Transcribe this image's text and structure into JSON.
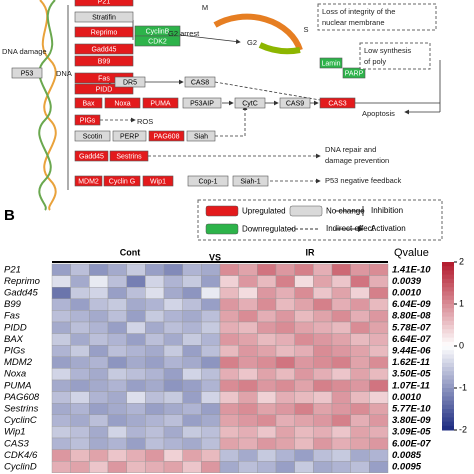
{
  "panel_a": {
    "nodes": [
      {
        "label": "P21",
        "color": "#e31a1c"
      },
      {
        "label": "Stratifin",
        "color": "#d9d9d9"
      },
      {
        "label": "Reprimo",
        "color": "#e31a1c"
      },
      {
        "label": "Gadd45",
        "color": "#e31a1c"
      },
      {
        "label": "B99",
        "color": "#e31a1c"
      },
      {
        "label": "CyclinB",
        "color": "#2db34a"
      },
      {
        "label": "CDK2",
        "color": "#2db34a"
      },
      {
        "label": "P53",
        "color": "#d9d9d9"
      },
      {
        "label": "Fas",
        "color": "#e31a1c"
      },
      {
        "label": "PIDD",
        "color": "#e31a1c"
      },
      {
        "label": "DR5",
        "color": "#d9d9d9"
      },
      {
        "label": "CAS8",
        "color": "#d9d9d9"
      },
      {
        "label": "Bax",
        "color": "#e31a1c"
      },
      {
        "label": "Noxa",
        "color": "#e31a1c"
      },
      {
        "label": "PUMA",
        "color": "#e31a1c"
      },
      {
        "label": "P53AIP",
        "color": "#d9d9d9"
      },
      {
        "label": "CytC",
        "color": "#d9d9d9"
      },
      {
        "label": "CAS9",
        "color": "#d9d9d9"
      },
      {
        "label": "CAS3",
        "color": "#e31a1c"
      },
      {
        "label": "PIGs",
        "color": "#e31a1c"
      },
      {
        "label": "Scotin",
        "color": "#d9d9d9"
      },
      {
        "label": "PERP",
        "color": "#d9d9d9"
      },
      {
        "label": "PAG608",
        "color": "#e31a1c"
      },
      {
        "label": "Siah",
        "color": "#d9d9d9"
      },
      {
        "label": "Gadd45",
        "color": "#e31a1c"
      },
      {
        "label": "Sestrins",
        "color": "#e31a1c"
      },
      {
        "label": "MDM2",
        "color": "#e31a1c"
      },
      {
        "label": "Cyclin G",
        "color": "#e31a1c"
      },
      {
        "label": "Wip1",
        "color": "#e31a1c"
      },
      {
        "label": "Cop-1",
        "color": "#d9d9d9"
      },
      {
        "label": "Siah-1",
        "color": "#d9d9d9"
      },
      {
        "label": "Lamin",
        "color": "#2db34a"
      },
      {
        "label": "PARP",
        "color": "#2db34a"
      }
    ],
    "texts": [
      "DNA damage",
      "DNA",
      "G2 arrest",
      "M",
      "G2",
      "S",
      "Loss of integrity of the",
      "nuclear membrane",
      "Low synthesis",
      "of poly",
      "ROS",
      "Apoptosis",
      "DNA repair and",
      "damage prevention",
      "P53 negative feedback"
    ]
  },
  "panel_label": "B",
  "legend": [
    {
      "label": "Upregulated",
      "color": "#e31a1c"
    },
    {
      "label": "No change",
      "color": "#d9d9d9"
    },
    {
      "label": "Inhibition"
    },
    {
      "label": "Downregulated",
      "color": "#2db34a"
    },
    {
      "label": "Indirect effect"
    },
    {
      "label": "Activation"
    }
  ],
  "chart_data": {
    "type": "heatmap",
    "groups": [
      "Cont",
      "VS",
      "IR"
    ],
    "qvalue_title": "Qvalue",
    "genes": [
      "P21",
      "Reprimo",
      "Gadd45",
      "B99",
      "Fas",
      "PIDD",
      "BAX",
      "PIGs",
      "MDM2",
      "Noxa",
      "PUMA",
      "PAG608",
      "Sestrins",
      "CyclinC",
      "Wip1",
      "CAS3",
      "CDK4/6",
      "CyclinD"
    ],
    "qvalues": [
      "1.41E-10",
      "0.0039",
      "0.0010",
      "6.04E-09",
      "8.80E-08",
      "5.78E-07",
      "6.64E-07",
      "9.44E-06",
      "1.62E-11",
      "3.50E-05",
      "1.07E-11",
      "0.0010",
      "5.77E-10",
      "3.80E-09",
      "3.09E-05",
      "6.00E-07",
      "0.0085",
      "0.0095"
    ],
    "values": [
      [
        -0.9,
        -0.6,
        -1.0,
        -0.8,
        -0.5,
        -0.9,
        -1.1,
        -0.7,
        -0.8,
        1.0,
        0.8,
        1.2,
        0.9,
        1.1,
        0.7,
        1.3,
        0.9,
        1.0
      ],
      [
        -0.3,
        -0.8,
        -0.2,
        -0.6,
        -1.2,
        -0.4,
        -0.7,
        -0.5,
        -0.9,
        0.4,
        0.9,
        0.6,
        1.1,
        0.3,
        0.8,
        0.5,
        1.2,
        0.7
      ],
      [
        -1.3,
        -0.5,
        -0.4,
        -0.9,
        -0.6,
        -0.3,
        -0.8,
        -1.0,
        -0.2,
        0.6,
        0.3,
        0.9,
        0.7,
        1.0,
        0.5,
        0.8,
        0.4,
        1.1
      ],
      [
        -0.7,
        -0.9,
        -0.6,
        -0.5,
        -0.8,
        -0.7,
        -0.4,
        -0.6,
        -0.9,
        0.9,
        0.7,
        1.0,
        0.6,
        0.8,
        1.1,
        0.7,
        0.9,
        0.6
      ],
      [
        -0.6,
        -0.7,
        -0.8,
        -0.6,
        -0.9,
        -0.5,
        -0.7,
        -0.8,
        -0.6,
        0.8,
        1.0,
        0.7,
        0.9,
        0.6,
        0.8,
        1.0,
        0.7,
        0.9
      ],
      [
        -0.8,
        -0.6,
        -0.7,
        -0.9,
        -0.4,
        -0.8,
        -0.6,
        -0.7,
        -0.5,
        0.7,
        0.6,
        0.9,
        1.0,
        0.8,
        0.7,
        0.6,
        1.0,
        0.8
      ],
      [
        -0.5,
        -0.8,
        -0.6,
        -0.7,
        -0.9,
        -0.6,
        -0.8,
        -0.5,
        -0.7,
        0.9,
        0.8,
        0.6,
        0.7,
        1.0,
        0.9,
        0.8,
        0.6,
        0.7
      ],
      [
        -0.7,
        -0.5,
        -0.9,
        -0.6,
        -0.7,
        -0.8,
        -0.5,
        -0.9,
        -0.6,
        0.6,
        0.9,
        0.8,
        0.6,
        0.7,
        1.0,
        0.9,
        0.8,
        0.6
      ],
      [
        -0.9,
        -0.8,
        -0.7,
        -1.0,
        -0.8,
        -0.9,
        -0.7,
        -0.8,
        -1.0,
        1.1,
        0.9,
        1.0,
        1.2,
        0.9,
        1.0,
        1.1,
        0.8,
        1.0
      ],
      [
        -0.4,
        -0.7,
        -0.8,
        -0.5,
        -0.6,
        -0.7,
        -0.9,
        -0.4,
        -0.6,
        0.7,
        0.5,
        0.8,
        0.6,
        0.9,
        0.7,
        0.5,
        0.8,
        0.6
      ],
      [
        -0.8,
        -0.9,
        -0.8,
        -0.7,
        -0.9,
        -0.8,
        -1.0,
        -0.9,
        -0.7,
        1.0,
        1.1,
        0.9,
        1.0,
        0.8,
        1.1,
        1.0,
        0.9,
        1.2
      ],
      [
        -0.6,
        -0.4,
        -0.7,
        -0.8,
        -0.3,
        -0.6,
        -0.5,
        -0.9,
        -0.4,
        0.5,
        0.8,
        0.4,
        0.7,
        0.6,
        0.5,
        0.9,
        0.6,
        0.4
      ],
      [
        -0.8,
        -0.7,
        -0.9,
        -0.8,
        -0.7,
        -0.9,
        -0.8,
        -0.7,
        -0.9,
        0.9,
        1.0,
        0.8,
        0.9,
        1.1,
        0.8,
        0.9,
        1.0,
        0.8
      ],
      [
        -0.7,
        -0.8,
        -0.6,
        -0.9,
        -0.8,
        -0.7,
        -0.6,
        -0.9,
        -0.8,
        0.8,
        0.9,
        1.0,
        0.7,
        0.8,
        0.9,
        1.1,
        0.7,
        0.9
      ],
      [
        -0.5,
        -0.6,
        -0.8,
        -0.4,
        -0.7,
        -0.6,
        -0.8,
        -0.5,
        -0.6,
        0.6,
        0.7,
        0.5,
        0.8,
        0.6,
        0.7,
        0.5,
        0.8,
        0.7
      ],
      [
        -0.7,
        -0.6,
        -0.8,
        -0.7,
        -0.9,
        -0.6,
        -0.7,
        -0.8,
        -0.6,
        0.8,
        0.7,
        0.9,
        0.8,
        0.6,
        0.9,
        0.7,
        0.8,
        0.9
      ],
      [
        0.9,
        0.6,
        0.8,
        0.5,
        0.7,
        0.9,
        0.4,
        0.8,
        0.6,
        -0.6,
        -0.8,
        -0.5,
        -0.7,
        -0.9,
        -0.6,
        -0.5,
        -0.8,
        -0.7
      ],
      [
        0.7,
        0.8,
        0.5,
        0.9,
        0.6,
        0.7,
        0.8,
        0.5,
        0.9,
        -0.8,
        -0.6,
        -0.7,
        -0.9,
        -0.5,
        -0.8,
        -0.7,
        -0.6,
        -0.9
      ]
    ],
    "clim": [
      -2,
      2
    ],
    "colorbar_ticks": [
      2,
      1,
      0,
      -1,
      -2
    ],
    "colors": [
      "#1b2a80",
      "#ffffff",
      "#b2182b"
    ]
  }
}
